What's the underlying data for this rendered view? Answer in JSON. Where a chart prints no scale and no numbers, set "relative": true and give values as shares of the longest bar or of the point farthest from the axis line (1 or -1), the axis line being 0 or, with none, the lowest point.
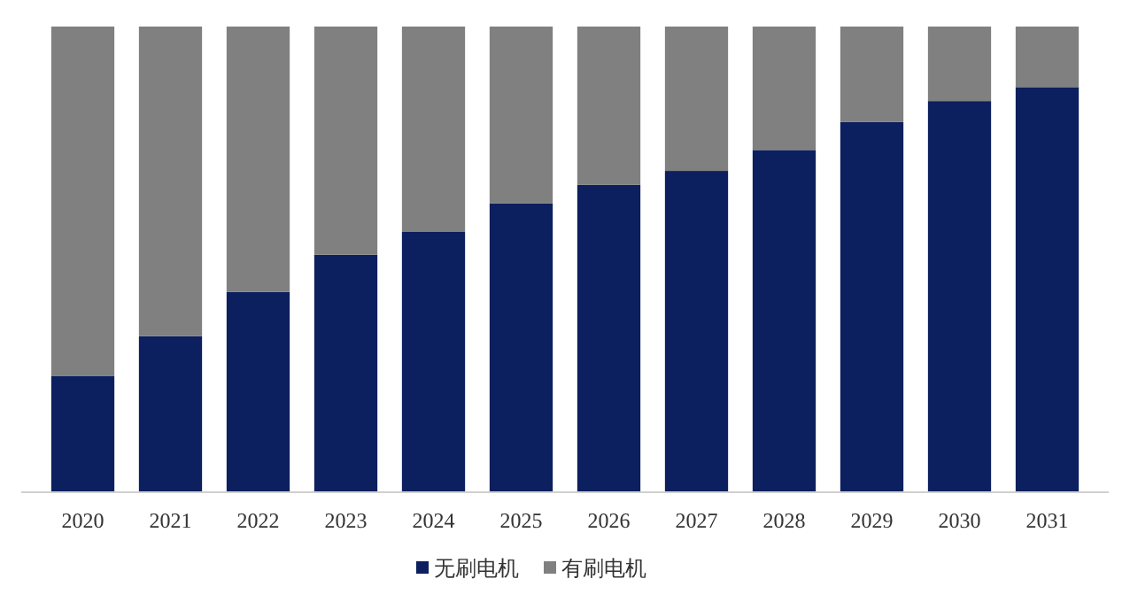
{
  "chart_data": {
    "type": "bar",
    "stacked": true,
    "relative": true,
    "legend": "bottom",
    "categories": [
      "2020",
      "2021",
      "2022",
      "2023",
      "2024",
      "2025",
      "2026",
      "2027",
      "2028",
      "2029",
      "2030",
      "2031"
    ],
    "series": [
      {
        "name": "无刷电机",
        "color": "#0c1f5e",
        "values": [
          0.25,
          0.335,
          0.43,
          0.51,
          0.56,
          0.62,
          0.66,
          0.69,
          0.735,
          0.795,
          0.84,
          0.87
        ]
      },
      {
        "name": "有刷电机",
        "color": "#808080",
        "values": [
          0.75,
          0.665,
          0.57,
          0.49,
          0.44,
          0.38,
          0.34,
          0.31,
          0.265,
          0.205,
          0.16,
          0.13
        ]
      }
    ]
  }
}
